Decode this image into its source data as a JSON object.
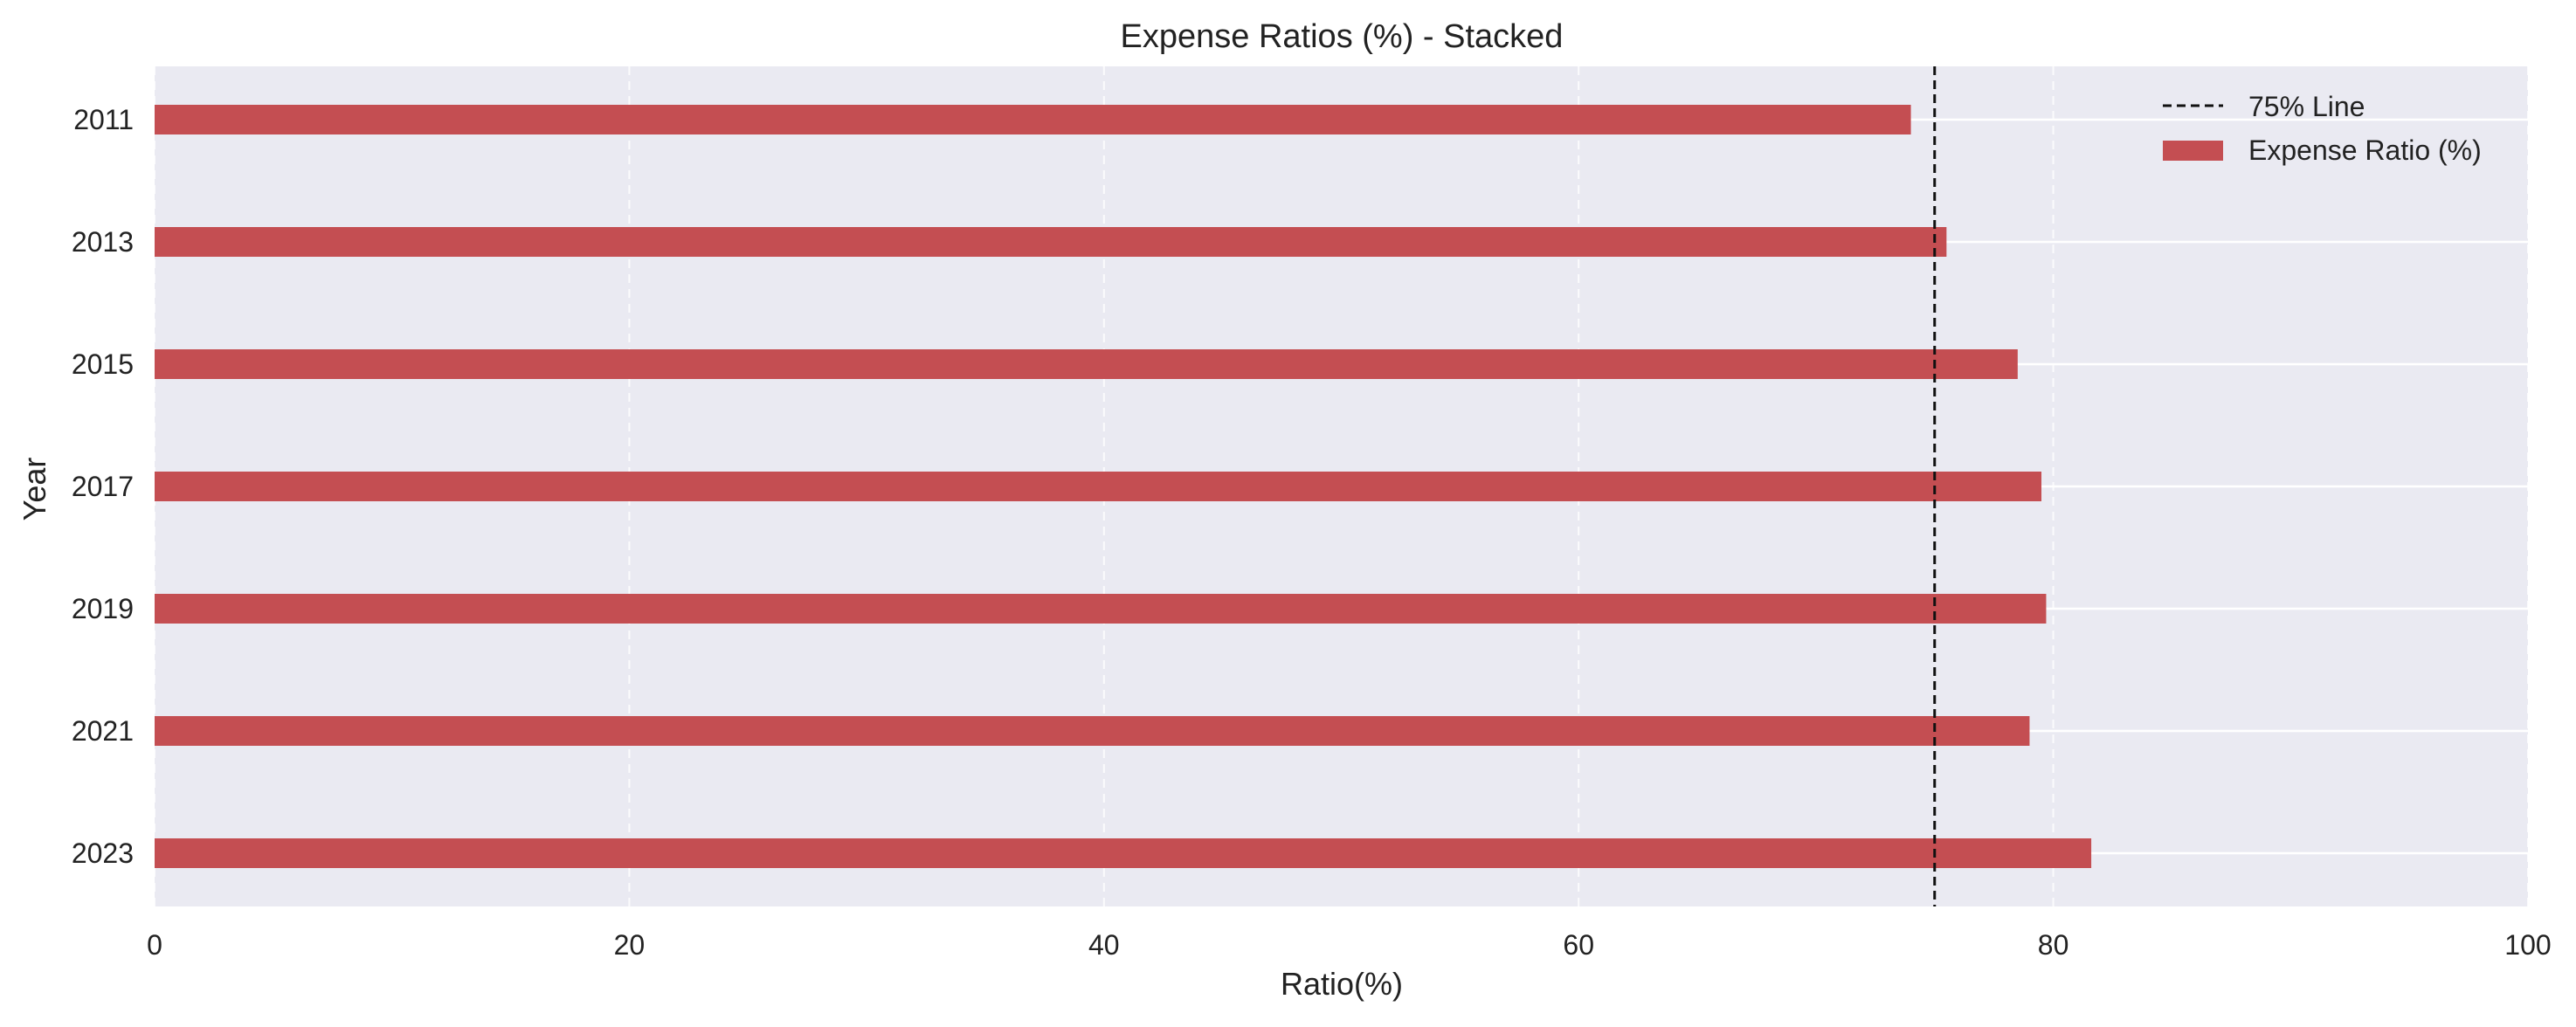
{
  "chart_data": {
    "type": "bar",
    "orientation": "horizontal",
    "title": "Expense Ratios (%) - Stacked",
    "xlabel": "Ratio(%)",
    "ylabel": "Year",
    "xlim": [
      0,
      100
    ],
    "xticks": [
      0,
      20,
      40,
      60,
      80,
      100
    ],
    "categories": [
      "2011",
      "2013",
      "2015",
      "2017",
      "2019",
      "2021",
      "2023"
    ],
    "series": [
      {
        "name": "Expense Ratio (%)",
        "color": "#c44e52",
        "values": [
          74.0,
          75.5,
          78.5,
          79.5,
          79.7,
          79.0,
          81.6
        ]
      }
    ],
    "reference_line": {
      "name": "75% Line",
      "value": 75,
      "style": "dashed",
      "color": "#111111"
    },
    "legend": {
      "placement": "top-right",
      "entries": [
        "75% Line",
        "Expense Ratio (%)"
      ]
    },
    "grid": true,
    "background": "#eaeaf2"
  }
}
